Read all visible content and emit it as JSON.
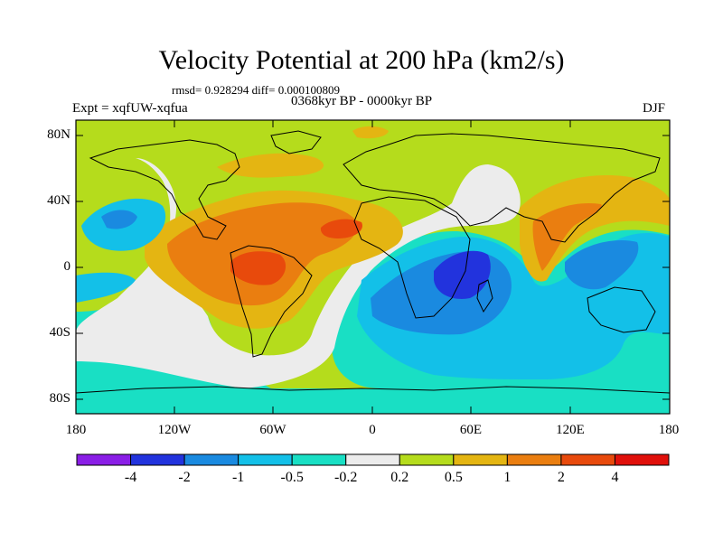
{
  "title": "Velocity Potential at 200 hPa (km2/s)",
  "stats": "rmsd= 0.928294 diff= 0.000100809",
  "left_label": "Expt = xqfUW-xqfua",
  "center_label": "0368kyr BP - 0000kyr BP",
  "right_label": "DJF",
  "lat_labels": [
    "80N",
    "40N",
    "0",
    "40S",
    "80S"
  ],
  "lon_labels": [
    "180",
    "120W",
    "60W",
    "0",
    "60E",
    "120E",
    "180"
  ],
  "colorbar": {
    "labels": [
      "-4",
      "-2",
      "-1",
      "-0.5",
      "-0.2",
      "0.2",
      "0.5",
      "1",
      "2",
      "4"
    ],
    "colors": [
      "#8a1ee6",
      "#2233dd",
      "#1a8ae0",
      "#13c0e8",
      "#19dfc4",
      "#ececec",
      "#b5dc1c",
      "#e4b512",
      "#ea7e10",
      "#e84a0c",
      "#e0100b"
    ]
  }
}
